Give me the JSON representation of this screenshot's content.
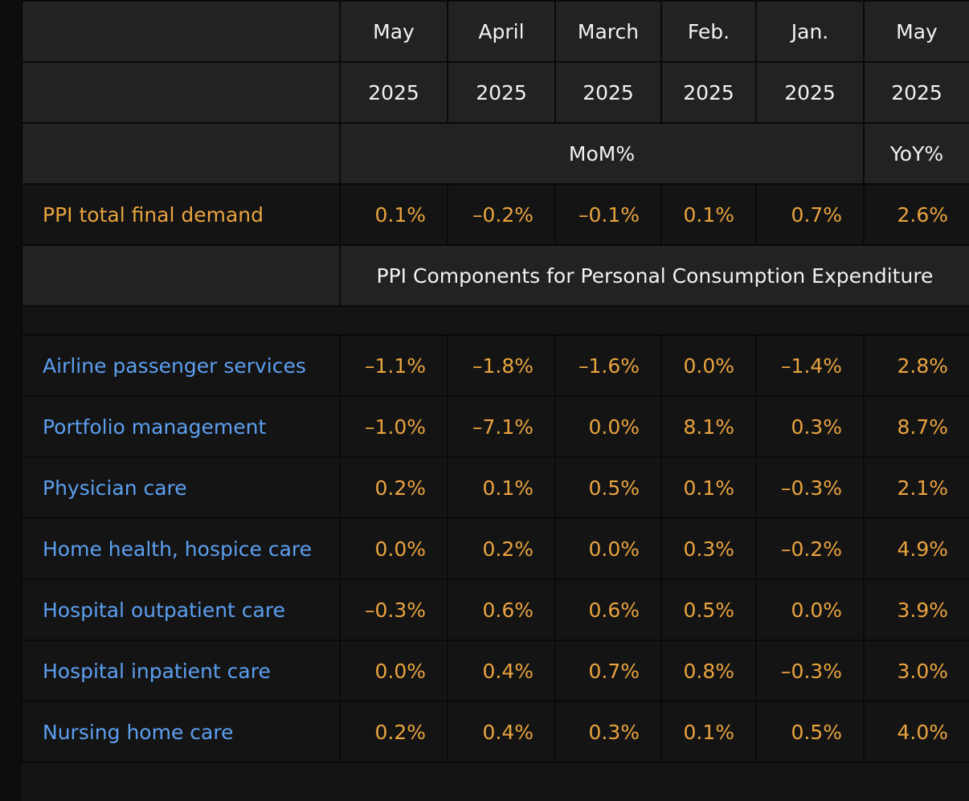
{
  "header": {
    "months": [
      "May",
      "April",
      "March",
      "Feb.",
      "Jan.",
      "May"
    ],
    "years": [
      "2025",
      "2025",
      "2025",
      "2025",
      "2025",
      "2025"
    ],
    "mom_label": "MoM%",
    "yoy_label": "YoY%"
  },
  "total": {
    "label": "PPI total final demand",
    "values": [
      "0.1%",
      "–0.2%",
      "–0.1%",
      "0.1%",
      "0.7%",
      "2.6%"
    ]
  },
  "section_title": "PPI Components for Personal Consumption Expenditure",
  "rows": [
    {
      "label": "Airline passenger services",
      "values": [
        "–1.1%",
        "–1.8%",
        "–1.6%",
        "0.0%",
        "–1.4%",
        "2.8%"
      ]
    },
    {
      "label": "Portfolio management",
      "values": [
        "–1.0%",
        "–7.1%",
        "0.0%",
        "8.1%",
        "0.3%",
        "8.7%"
      ]
    },
    {
      "label": "Physician care",
      "values": [
        "0.2%",
        "0.1%",
        "0.5%",
        "0.1%",
        "–0.3%",
        "2.1%"
      ]
    },
    {
      "label": "Home health, hospice care",
      "values": [
        "0.0%",
        "0.2%",
        "0.0%",
        "0.3%",
        "–0.2%",
        "4.9%"
      ]
    },
    {
      "label": "Hospital outpatient care",
      "values": [
        "–0.3%",
        "0.6%",
        "0.6%",
        "0.5%",
        "0.0%",
        "3.9%"
      ]
    },
    {
      "label": "Hospital inpatient care",
      "values": [
        "0.0%",
        "0.4%",
        "0.7%",
        "0.8%",
        "–0.3%",
        "3.0%"
      ]
    },
    {
      "label": "Nursing home care",
      "values": [
        "0.2%",
        "0.4%",
        "0.3%",
        "0.1%",
        "0.5%",
        "4.0%"
      ]
    }
  ],
  "colors": {
    "total_label": "#e9a33f",
    "values": "#e9a33f",
    "component_labels": "#5c9ff0",
    "header_bg": "#222222",
    "row_bg": "#141414"
  }
}
